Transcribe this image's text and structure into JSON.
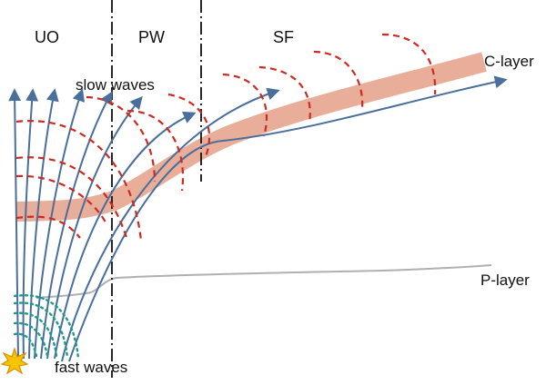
{
  "labels": {
    "zone_uo": "UO",
    "zone_pw": "PW",
    "zone_sf": "SF",
    "slow_waves": "slow waves",
    "fast_waves": "fast waves",
    "c_layer": "C-layer",
    "p_layer": "P-layer"
  },
  "colors": {
    "ray": "#4a6f9a",
    "slow_wave_front": "#cc2a22",
    "fast_wave_front": "#1e9a8c",
    "c_layer_band": "#e7a58f",
    "p_layer_line": "#b0b0b0",
    "boundary_line": "#111111",
    "source_burst": "#f7c400"
  },
  "icons": {
    "source": "star-burst-icon"
  }
}
